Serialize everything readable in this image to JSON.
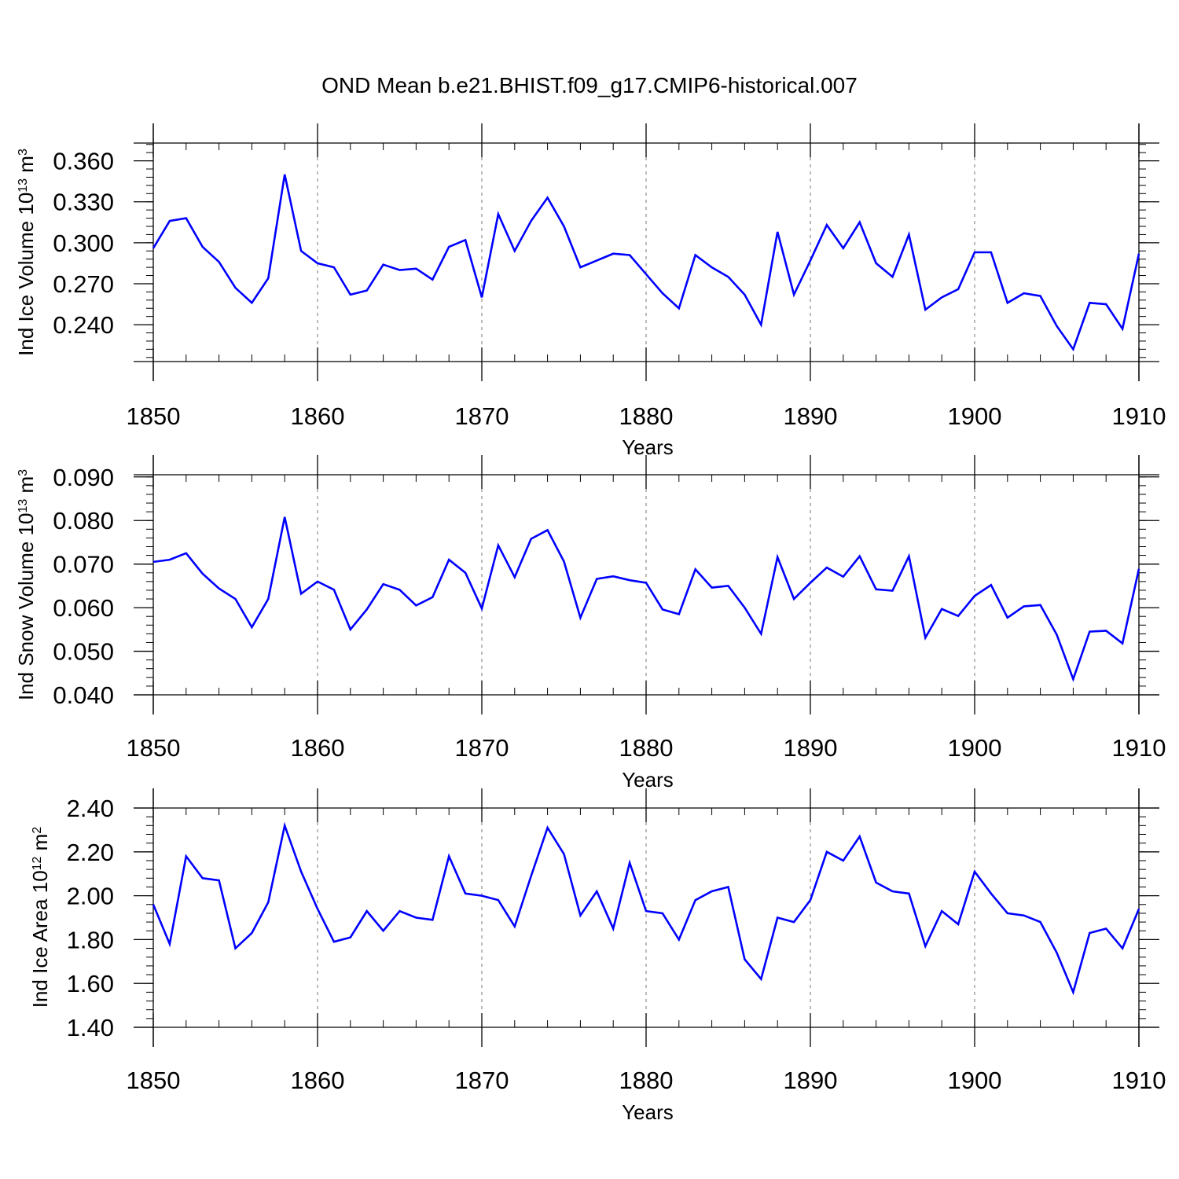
{
  "title": "OND Mean b.e21.BHIST.f09_g17.CMIP6-historical.007",
  "chart_data": [
    {
      "type": "line",
      "ylabel": "Ind Ice Volume 10",
      "ylabel_exp": "13",
      "ylabel_unit": " m",
      "ylabel_unit_exp": "3",
      "xlabel": "Years",
      "xlim": [
        1850,
        1910
      ],
      "ylim": [
        0.213,
        0.373
      ],
      "yticks": [
        0.24,
        0.27,
        0.3,
        0.33,
        0.36
      ],
      "ytick_labels": [
        "0.240",
        "0.270",
        "0.300",
        "0.330",
        "0.360"
      ],
      "yminor_step": 0.006,
      "xticks": [
        1850,
        1860,
        1870,
        1880,
        1890,
        1900,
        1910
      ],
      "xtick_labels": [
        "1850",
        "1860",
        "1870",
        "1880",
        "1890",
        "1900",
        "1910"
      ],
      "series": [
        {
          "name": "Ind Ice Volume",
          "color": "#0000ff",
          "x_start": 1850,
          "values": [
            0.296,
            0.316,
            0.318,
            0.297,
            0.286,
            0.267,
            0.256,
            0.274,
            0.35,
            0.294,
            0.285,
            0.282,
            0.262,
            0.265,
            0.284,
            0.28,
            0.281,
            0.273,
            0.297,
            0.302,
            0.26,
            0.321,
            0.294,
            0.316,
            0.333,
            0.312,
            0.282,
            0.287,
            0.292,
            0.291,
            0.277,
            0.263,
            0.252,
            0.291,
            0.282,
            0.275,
            0.262,
            0.24,
            0.308,
            0.262,
            0.287,
            0.313,
            0.296,
            0.315,
            0.285,
            0.275,
            0.306,
            0.251,
            0.26,
            0.266,
            0.293,
            0.293,
            0.256,
            0.263,
            0.261,
            0.239,
            0.222,
            0.256,
            0.255,
            0.237,
            0.292
          ]
        }
      ]
    },
    {
      "type": "line",
      "ylabel": "Ind Snow Volume 10",
      "ylabel_exp": "13",
      "ylabel_unit": " m",
      "ylabel_unit_exp": "3",
      "xlabel": "Years",
      "xlim": [
        1850,
        1910
      ],
      "ylim": [
        0.04,
        0.0905
      ],
      "yticks": [
        0.04,
        0.05,
        0.06,
        0.07,
        0.08,
        0.09
      ],
      "ytick_labels": [
        "0.040",
        "0.050",
        "0.060",
        "0.070",
        "0.080",
        "0.090"
      ],
      "yminor_step": 0.002,
      "xticks": [
        1850,
        1860,
        1870,
        1880,
        1890,
        1900,
        1910
      ],
      "xtick_labels": [
        "1850",
        "1860",
        "1870",
        "1880",
        "1890",
        "1900",
        "1910"
      ],
      "series": [
        {
          "name": "Ind Snow Volume",
          "color": "#0000ff",
          "x_start": 1850,
          "values": [
            0.0705,
            0.071,
            0.0725,
            0.0678,
            0.0644,
            0.062,
            0.0555,
            0.062,
            0.0808,
            0.0632,
            0.066,
            0.0641,
            0.055,
            0.0596,
            0.0654,
            0.0641,
            0.0605,
            0.0624,
            0.071,
            0.068,
            0.0598,
            0.0743,
            0.067,
            0.0758,
            0.0778,
            0.0706,
            0.0577,
            0.0666,
            0.0672,
            0.0663,
            0.0657,
            0.0596,
            0.0585,
            0.0688,
            0.0646,
            0.065,
            0.06,
            0.054,
            0.0716,
            0.062,
            0.0657,
            0.0692,
            0.0671,
            0.0718,
            0.0642,
            0.0639,
            0.0718,
            0.0531,
            0.0597,
            0.0581,
            0.0627,
            0.0652,
            0.0577,
            0.0603,
            0.0606,
            0.0538,
            0.0436,
            0.0545,
            0.0547,
            0.0518,
            0.0689
          ]
        }
      ]
    },
    {
      "type": "line",
      "ylabel": "Ind Ice Area 10",
      "ylabel_exp": "12",
      "ylabel_unit": " m",
      "ylabel_unit_exp": "2",
      "xlabel": "Years",
      "xlim": [
        1850,
        1910
      ],
      "ylim": [
        1.4,
        2.4
      ],
      "yticks": [
        1.4,
        1.6,
        1.8,
        2.0,
        2.2,
        2.4
      ],
      "ytick_labels": [
        "1.40",
        "1.60",
        "1.80",
        "2.00",
        "2.20",
        "2.40"
      ],
      "yminor_step": 0.04,
      "xticks": [
        1850,
        1860,
        1870,
        1880,
        1890,
        1900,
        1910
      ],
      "xtick_labels": [
        "1850",
        "1860",
        "1870",
        "1880",
        "1890",
        "1900",
        "1910"
      ],
      "series": [
        {
          "name": "Ind Ice Area",
          "color": "#0000ff",
          "x_start": 1850,
          "values": [
            1.96,
            1.78,
            2.18,
            2.08,
            2.07,
            1.76,
            1.83,
            1.97,
            2.32,
            2.11,
            1.94,
            1.79,
            1.81,
            1.93,
            1.84,
            1.93,
            1.9,
            1.89,
            2.18,
            2.01,
            2.0,
            1.98,
            1.86,
            2.09,
            2.31,
            2.19,
            1.91,
            2.02,
            1.85,
            2.15,
            1.93,
            1.92,
            1.8,
            1.98,
            2.02,
            2.04,
            1.71,
            1.62,
            1.9,
            1.88,
            1.98,
            2.2,
            2.16,
            2.27,
            2.06,
            2.02,
            2.01,
            1.77,
            1.93,
            1.87,
            2.11,
            2.01,
            1.92,
            1.91,
            1.88,
            1.74,
            1.56,
            1.83,
            1.85,
            1.76,
            1.94
          ]
        }
      ]
    }
  ]
}
